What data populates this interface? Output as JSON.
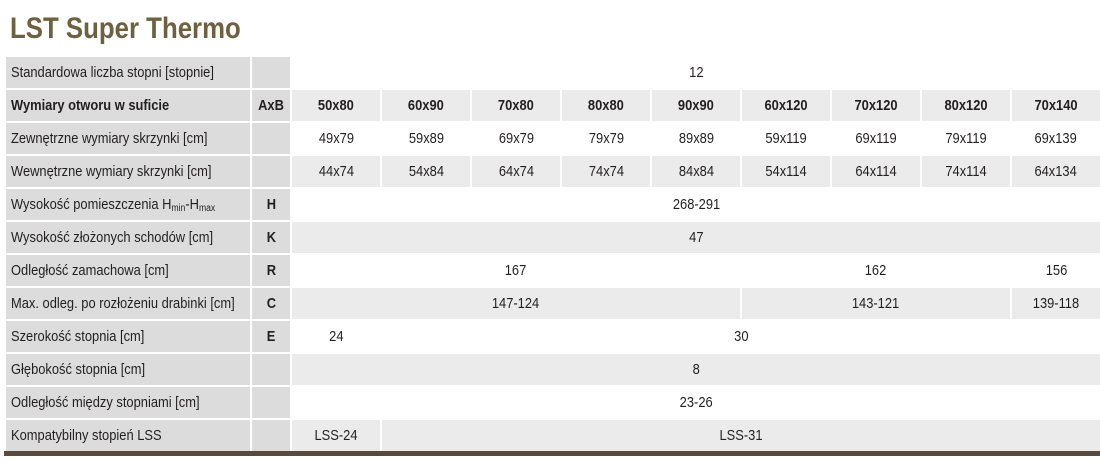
{
  "title": "LST Super Thermo",
  "table": {
    "rows": [
      {
        "label": "Standardowa liczba stopni [stopnie]",
        "cells": [
          "12"
        ]
      },
      {
        "label": "Wymiary otworu w suficie",
        "code": "AxB",
        "cells": [
          "50x80",
          "60x90",
          "70x80",
          "80x80",
          "90x90",
          "60x120",
          "70x120",
          "80x120",
          "70x140"
        ]
      },
      {
        "label": "Zewnętrzne wymiary skrzynki [cm]",
        "cells": [
          "49x79",
          "59x89",
          "69x79",
          "79x79",
          "89x89",
          "59x119",
          "69x119",
          "79x119",
          "69x139"
        ]
      },
      {
        "label": "Wewnętrzne wymiary skrzynki [cm]",
        "cells": [
          "44x74",
          "54x84",
          "64x74",
          "74x74",
          "84x84",
          "54x114",
          "64x114",
          "74x114",
          "64x134"
        ]
      },
      {
        "label_parts": [
          "Wysokość pomieszczenia H",
          "min",
          "-H",
          "max"
        ],
        "code": "H",
        "cells": [
          "268-291"
        ]
      },
      {
        "label": "Wysokość złożonych schodów [cm]",
        "code": "K",
        "cells": [
          "47"
        ]
      },
      {
        "label": "Odległość zamachowa [cm]",
        "code": "R",
        "cells": [
          "167",
          "162",
          "156"
        ]
      },
      {
        "label": "Max. odleg. po rozłożeniu drabinki [cm]",
        "code": "C",
        "cells": [
          "147-124",
          "143-121",
          "139-118"
        ]
      },
      {
        "label": "Szerokość stopnia [cm]",
        "code": "E",
        "cells": [
          "24",
          "30"
        ]
      },
      {
        "label": "Głębokość stopnia [cm]",
        "cells": [
          "8"
        ]
      },
      {
        "label": "Odległość między stopniami [cm]",
        "cells": [
          "23-26"
        ]
      },
      {
        "label": "Kompatybilny stopień LSS",
        "cells": [
          "LSS-24",
          "LSS-31"
        ]
      }
    ]
  }
}
